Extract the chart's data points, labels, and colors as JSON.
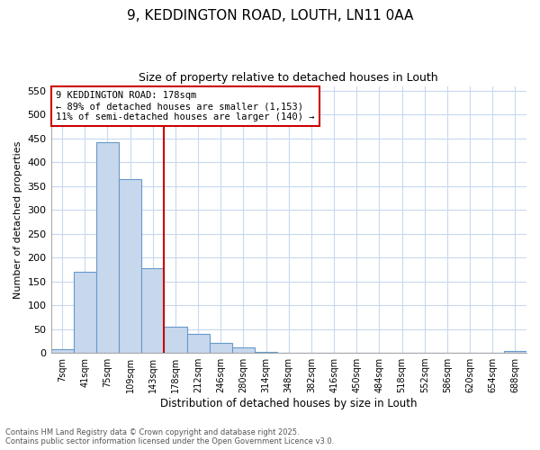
{
  "title1": "9, KEDDINGTON ROAD, LOUTH, LN11 0AA",
  "title2": "Size of property relative to detached houses in Louth",
  "xlabel": "Distribution of detached houses by size in Louth",
  "ylabel": "Number of detached properties",
  "bin_labels": [
    "7sqm",
    "41sqm",
    "75sqm",
    "109sqm",
    "143sqm",
    "178sqm",
    "212sqm",
    "246sqm",
    "280sqm",
    "314sqm",
    "348sqm",
    "382sqm",
    "416sqm",
    "450sqm",
    "484sqm",
    "518sqm",
    "552sqm",
    "586sqm",
    "620sqm",
    "654sqm",
    "688sqm"
  ],
  "bar_values": [
    8,
    170,
    443,
    365,
    178,
    55,
    40,
    20,
    12,
    2,
    0,
    0,
    0,
    0,
    0,
    0,
    1,
    0,
    0,
    0,
    3
  ],
  "bar_color": "#c8d8ec",
  "bar_edge_color": "#6699cc",
  "vline_x_index": 5,
  "vline_color": "#cc0000",
  "annotation_text": "9 KEDDINGTON ROAD: 178sqm\n← 89% of detached houses are smaller (1,153)\n11% of semi-detached houses are larger (140) →",
  "annotation_box_facecolor": "#ffffff",
  "annotation_box_edge": "#cc0000",
  "ylim": [
    0,
    560
  ],
  "yticks": [
    0,
    50,
    100,
    150,
    200,
    250,
    300,
    350,
    400,
    450,
    500,
    550
  ],
  "footer1": "Contains HM Land Registry data © Crown copyright and database right 2025.",
  "footer2": "Contains public sector information licensed under the Open Government Licence v3.0.",
  "bg_color": "#ffffff",
  "plot_bg_color": "#ffffff",
  "grid_color": "#c8d8f0"
}
